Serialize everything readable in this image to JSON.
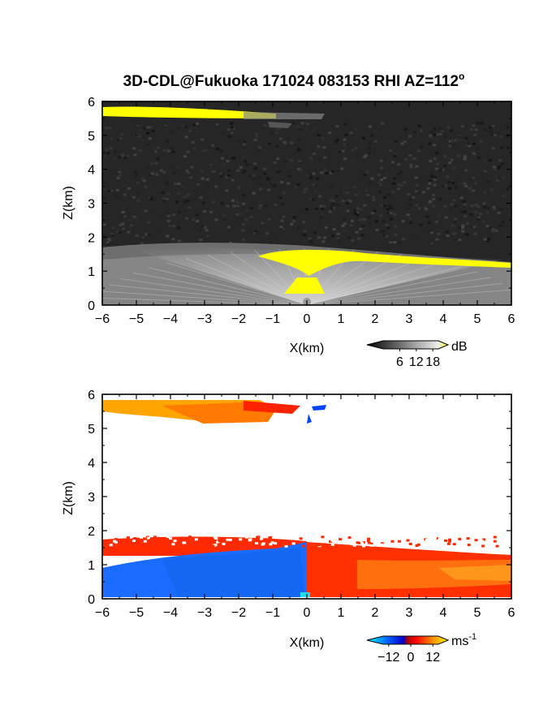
{
  "title": "3D-CDL@Fukuoka 171024 083153 RHI AZ=112",
  "title_sup": "o",
  "chart_data": [
    {
      "type": "heatmap",
      "quantity": "backscatter",
      "xlabel": "X(km)",
      "ylabel": "Z(km)",
      "xlim": [
        -6,
        6
      ],
      "ylim": [
        0,
        6
      ],
      "xticks": [
        "-6",
        "-5",
        "-4",
        "-3",
        "-2",
        "-1",
        "0",
        "1",
        "2",
        "3",
        "4",
        "5",
        "6"
      ],
      "yticks": [
        "0",
        "1",
        "2",
        "3",
        "4",
        "5",
        "6"
      ],
      "colorbar": {
        "unit": "dB",
        "unit_sup": "",
        "tick_labels": [
          "6",
          "12",
          "18"
        ],
        "tick_values": [
          6,
          12,
          18
        ],
        "range": [
          0,
          20
        ]
      },
      "features": [
        {
          "name": "boundary layer",
          "z_top_at_x": [
            [
              -6,
              1.5
            ],
            [
              -3,
              1.7
            ],
            [
              0,
              1.65
            ],
            [
              3,
              1.45
            ],
            [
              6,
              1.2
            ]
          ]
        },
        {
          "name": "cloud layer",
          "x_range": [
            -6,
            0.7
          ],
          "z": 5.6
        }
      ]
    },
    {
      "type": "heatmap",
      "quantity": "doppler velocity",
      "xlabel": "X(km)",
      "ylabel": "Z(km)",
      "xlim": [
        -6,
        6
      ],
      "ylim": [
        0,
        6
      ],
      "xticks": [
        "-6",
        "-5",
        "-4",
        "-3",
        "-2",
        "-1",
        "0",
        "1",
        "2",
        "3",
        "4",
        "5",
        "6"
      ],
      "yticks": [
        "0",
        "1",
        "2",
        "3",
        "4",
        "5",
        "6"
      ],
      "colorbar": {
        "unit": "ms",
        "unit_sup": "-1",
        "tick_labels": [
          "-12",
          "0",
          "12"
        ],
        "tick_values": [
          -12,
          0,
          12
        ],
        "range": [
          -15,
          15
        ]
      }
    }
  ]
}
